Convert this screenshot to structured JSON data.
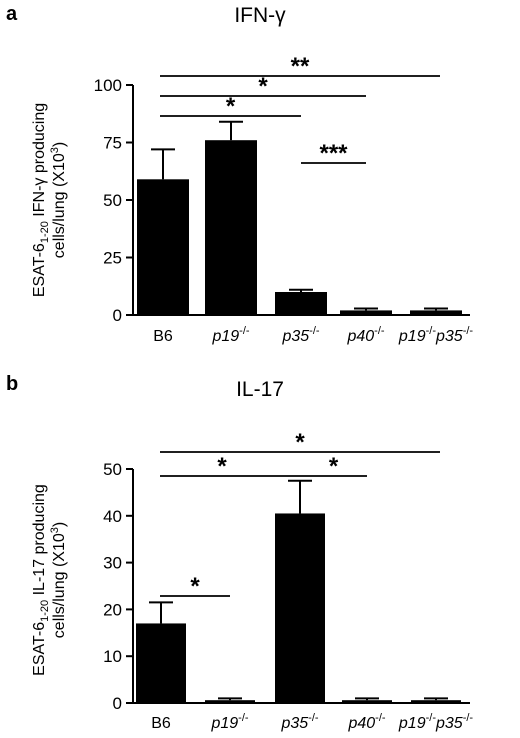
{
  "panels": [
    {
      "letter": "a",
      "title": "IFN-γ",
      "ylabel_line1_pre": "ESAT-6",
      "ylabel_line1_sub": "1-20",
      "ylabel_line1_post": " IFN-γ producing",
      "ylabel_line2": "cells/lung (X10",
      "ylabel_line2_sup": "3",
      "ylabel_line2_post": ")"
    },
    {
      "letter": "b",
      "title": "IL-17",
      "ylabel_line1_pre": "ESAT-6",
      "ylabel_line1_sub": "1-20",
      "ylabel_line1_post": " IL-17 producing",
      "ylabel_line2": "cells/lung (X10",
      "ylabel_line2_sup": "3",
      "ylabel_line2_post": ")"
    }
  ],
  "chart_data": [
    {
      "type": "bar",
      "title": "IFN-γ",
      "ylabel": "ESAT-6 1-20 IFN-γ producing cells/lung (X10 3)",
      "categories": [
        {
          "label": "B6",
          "parts": [
            [
              "B6",
              false
            ]
          ]
        },
        {
          "label": "p19-/-",
          "parts": [
            [
              "p19",
              true
            ],
            [
              "-/-",
              false,
              "sup"
            ]
          ]
        },
        {
          "label": "p35-/-",
          "parts": [
            [
              "p35",
              true
            ],
            [
              "-/-",
              false,
              "sup"
            ]
          ]
        },
        {
          "label": "p40-/-",
          "parts": [
            [
              "p40",
              true
            ],
            [
              "-/-",
              false,
              "sup"
            ]
          ]
        },
        {
          "label": "p19-/-p35-/-",
          "parts": [
            [
              "p19",
              true
            ],
            [
              "-/-",
              false,
              "sup"
            ],
            [
              "p35",
              true
            ],
            [
              "-/-",
              false,
              "sup"
            ]
          ]
        }
      ],
      "values": [
        59,
        76,
        10,
        2,
        2
      ],
      "errors": [
        13,
        8,
        1,
        0.8,
        0.8
      ],
      "ylim": [
        0,
        100
      ],
      "yticks": [
        0,
        25,
        50,
        75,
        100
      ],
      "significance": [
        {
          "from": 0,
          "to": 4,
          "label": "**"
        },
        {
          "from": 0,
          "to": 3,
          "label": "*"
        },
        {
          "from": 0,
          "to": 2,
          "label": "*"
        },
        {
          "from": 2,
          "to": 3,
          "label": "***"
        }
      ]
    },
    {
      "type": "bar",
      "title": "IL-17",
      "ylabel": "ESAT-6 1-20 IL-17 producing cells/lung (X10 3)",
      "categories": [
        {
          "label": "B6",
          "parts": [
            [
              "B6",
              false
            ]
          ]
        },
        {
          "label": "p19-/-",
          "parts": [
            [
              "p19",
              true
            ],
            [
              "-/-",
              false,
              "sup"
            ]
          ]
        },
        {
          "label": "p35-/-",
          "parts": [
            [
              "p35",
              true
            ],
            [
              "-/-",
              false,
              "sup"
            ]
          ]
        },
        {
          "label": "p40-/-",
          "parts": [
            [
              "p40",
              true
            ],
            [
              "-/-",
              false,
              "sup"
            ]
          ]
        },
        {
          "label": "p19-/-p35-/-",
          "parts": [
            [
              "p19",
              true
            ],
            [
              "-/-",
              false,
              "sup"
            ],
            [
              "p35",
              true
            ],
            [
              "-/-",
              false,
              "sup"
            ]
          ]
        }
      ],
      "values": [
        17,
        0.6,
        40.5,
        0.6,
        0.6
      ],
      "errors": [
        4.5,
        0.4,
        7,
        0.4,
        0.4
      ],
      "ylim": [
        0,
        50
      ],
      "yticks": [
        0,
        10,
        20,
        30,
        40,
        50
      ],
      "significance": [
        {
          "from": 0,
          "to": 4,
          "label": "*"
        },
        {
          "from": 0,
          "to": 2,
          "label": "*"
        },
        {
          "from": 2,
          "to": 3,
          "label": "*"
        },
        {
          "from": 0,
          "to": 1,
          "label": "*"
        }
      ]
    }
  ]
}
